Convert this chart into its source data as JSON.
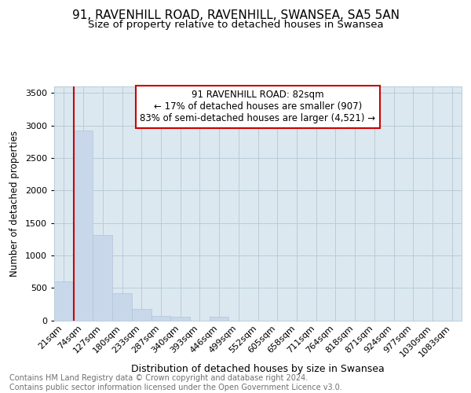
{
  "title1": "91, RAVENHILL ROAD, RAVENHILL, SWANSEA, SA5 5AN",
  "title2": "Size of property relative to detached houses in Swansea",
  "xlabel": "Distribution of detached houses by size in Swansea",
  "ylabel": "Number of detached properties",
  "categories": [
    "21sqm",
    "74sqm",
    "127sqm",
    "180sqm",
    "233sqm",
    "287sqm",
    "340sqm",
    "393sqm",
    "446sqm",
    "499sqm",
    "552sqm",
    "605sqm",
    "658sqm",
    "711sqm",
    "764sqm",
    "818sqm",
    "871sqm",
    "924sqm",
    "977sqm",
    "1030sqm",
    "1083sqm"
  ],
  "values": [
    600,
    2920,
    1310,
    420,
    175,
    70,
    55,
    0,
    55,
    0,
    0,
    0,
    0,
    0,
    0,
    0,
    0,
    0,
    0,
    0,
    0
  ],
  "bar_color": "#c8d8ea",
  "bar_edge_color": "#b0c4d8",
  "marker_line_color": "#cc0000",
  "annotation_box_text": "91 RAVENHILL ROAD: 82sqm\n← 17% of detached houses are smaller (907)\n83% of semi-detached houses are larger (4,521) →",
  "annotation_box_color": "#cc0000",
  "ylim": [
    0,
    3600
  ],
  "yticks": [
    0,
    500,
    1000,
    1500,
    2000,
    2500,
    3000,
    3500
  ],
  "footer_text": "Contains HM Land Registry data © Crown copyright and database right 2024.\nContains public sector information licensed under the Open Government Licence v3.0.",
  "fig_bg_color": "#ffffff",
  "plot_bg_color": "#dce8f0",
  "grid_color": "#b8ccd8",
  "title1_fontsize": 11,
  "title2_fontsize": 9.5,
  "xlabel_fontsize": 9,
  "ylabel_fontsize": 8.5,
  "tick_fontsize": 8,
  "footer_fontsize": 7
}
